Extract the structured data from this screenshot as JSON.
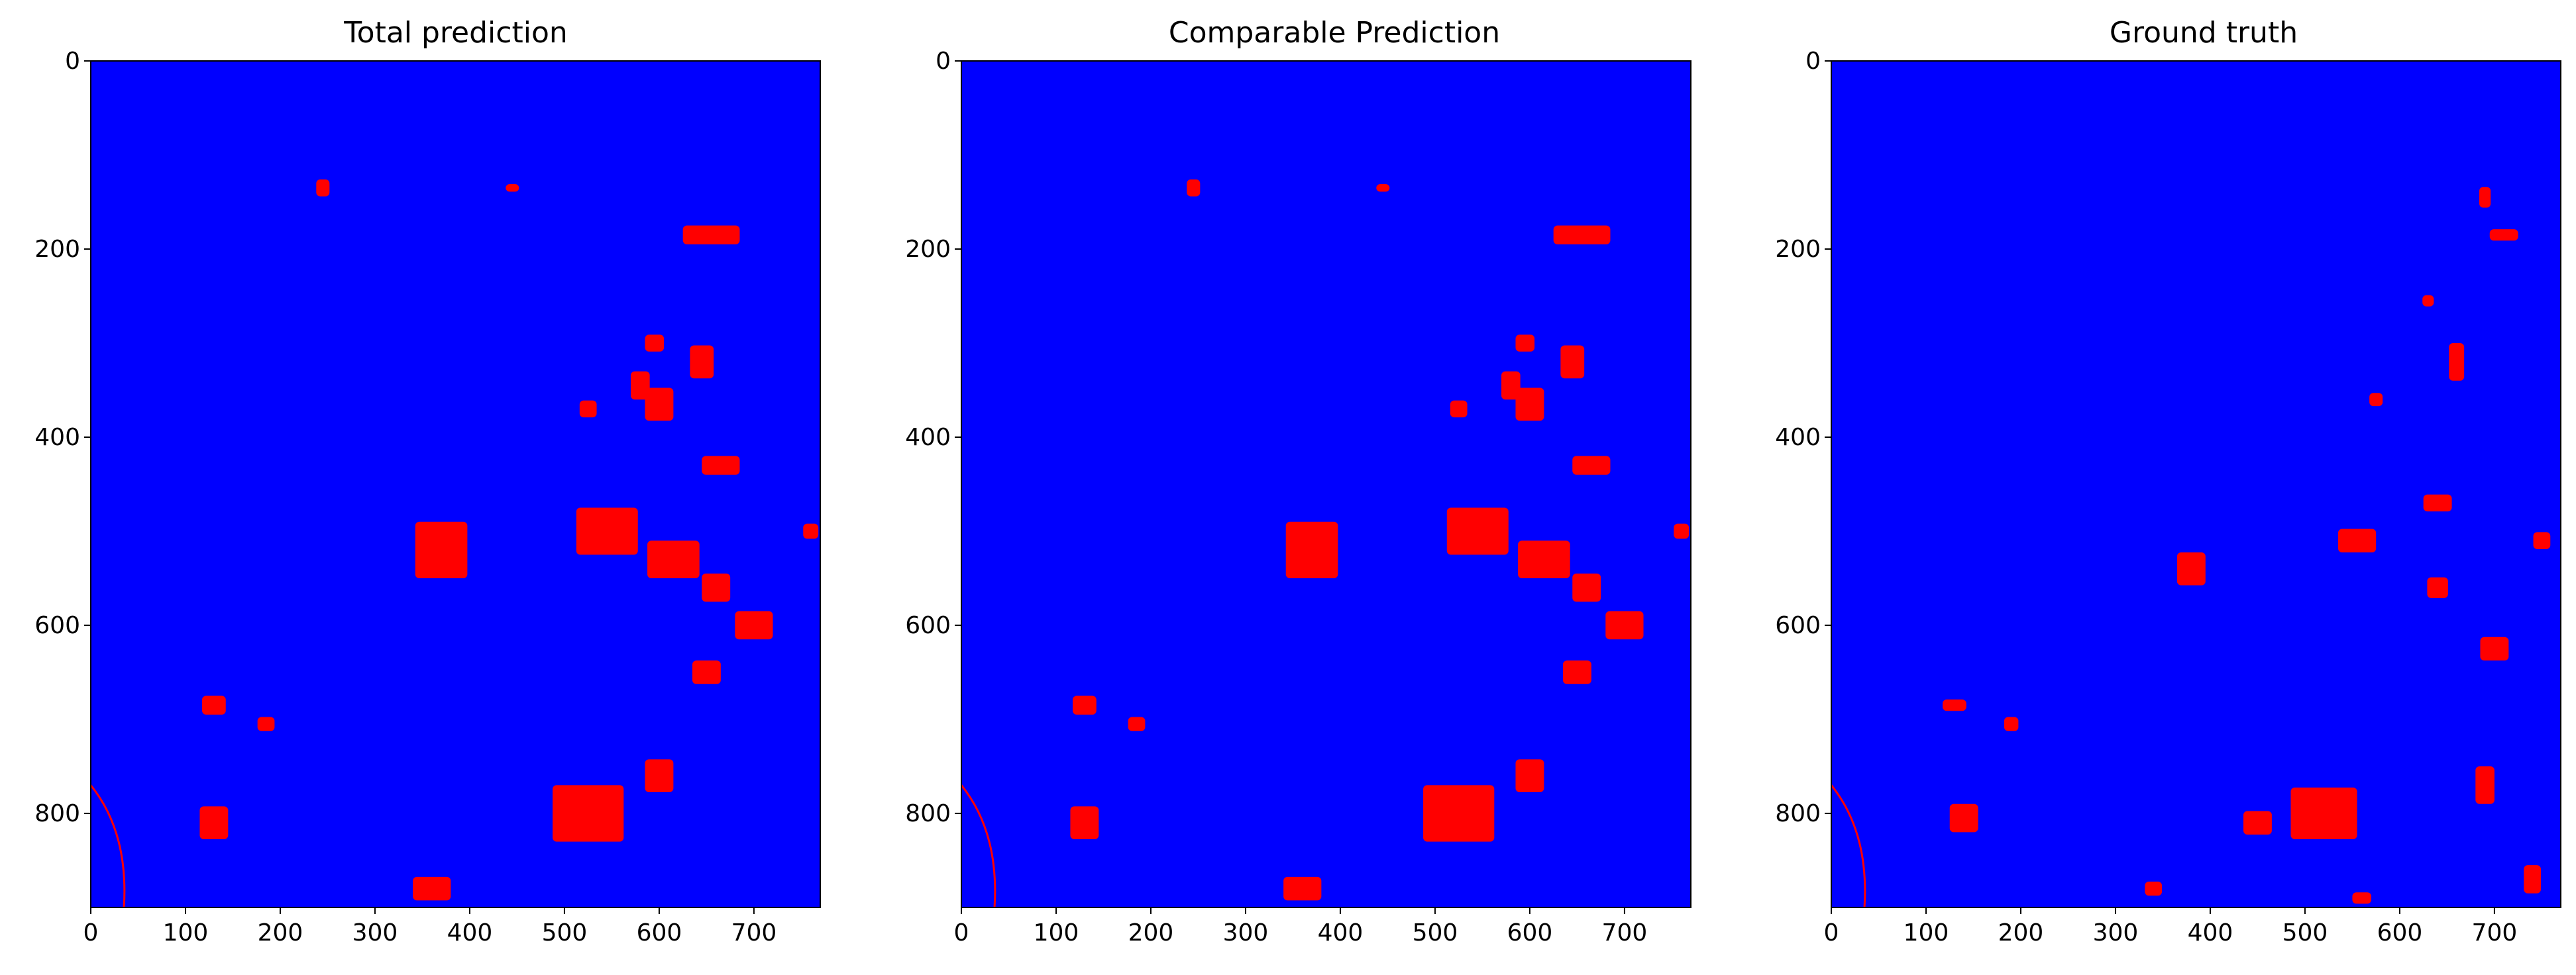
{
  "colors": {
    "background_class": "#0000ff",
    "foreground_class": "#ff0000",
    "axis": "#000000"
  },
  "chart_data": [
    {
      "type": "heatmap",
      "title": "Total prediction",
      "xlabel": "",
      "ylabel": "",
      "xlim": [
        0,
        770
      ],
      "ylim": [
        900,
        0
      ],
      "x_ticks": [
        0,
        100,
        200,
        300,
        400,
        500,
        600,
        700
      ],
      "y_ticks": [
        0,
        200,
        400,
        600,
        800
      ],
      "grid": false,
      "classes": [
        "background",
        "change"
      ],
      "blobs": [
        {
          "x": 245,
          "y": 135,
          "w": 14,
          "h": 18
        },
        {
          "x": 445,
          "y": 135,
          "w": 14,
          "h": 8
        },
        {
          "x": 655,
          "y": 185,
          "w": 60,
          "h": 20
        },
        {
          "x": 595,
          "y": 300,
          "w": 20,
          "h": 18
        },
        {
          "x": 645,
          "y": 320,
          "w": 25,
          "h": 35
        },
        {
          "x": 580,
          "y": 345,
          "w": 20,
          "h": 30
        },
        {
          "x": 525,
          "y": 370,
          "w": 18,
          "h": 18
        },
        {
          "x": 600,
          "y": 365,
          "w": 30,
          "h": 35
        },
        {
          "x": 545,
          "y": 500,
          "w": 65,
          "h": 50
        },
        {
          "x": 615,
          "y": 530,
          "w": 55,
          "h": 40
        },
        {
          "x": 370,
          "y": 520,
          "w": 55,
          "h": 60
        },
        {
          "x": 660,
          "y": 560,
          "w": 30,
          "h": 30
        },
        {
          "x": 760,
          "y": 500,
          "w": 16,
          "h": 16
        },
        {
          "x": 130,
          "y": 685,
          "w": 25,
          "h": 20
        },
        {
          "x": 185,
          "y": 705,
          "w": 18,
          "h": 15
        },
        {
          "x": 525,
          "y": 800,
          "w": 75,
          "h": 60
        },
        {
          "x": 600,
          "y": 760,
          "w": 30,
          "h": 35
        },
        {
          "x": 130,
          "y": 810,
          "w": 30,
          "h": 35
        },
        {
          "x": 665,
          "y": 430,
          "w": 40,
          "h": 20
        },
        {
          "x": 700,
          "y": 600,
          "w": 40,
          "h": 30
        },
        {
          "x": 360,
          "y": 880,
          "w": 40,
          "h": 25
        },
        {
          "x": 650,
          "y": 650,
          "w": 30,
          "h": 25
        }
      ]
    },
    {
      "type": "heatmap",
      "title": "Comparable Prediction",
      "xlabel": "",
      "ylabel": "",
      "xlim": [
        0,
        770
      ],
      "ylim": [
        900,
        0
      ],
      "x_ticks": [
        0,
        100,
        200,
        300,
        400,
        500,
        600,
        700
      ],
      "y_ticks": [
        0,
        200,
        400,
        600,
        800
      ],
      "grid": false,
      "classes": [
        "background",
        "change"
      ],
      "blobs": [
        {
          "x": 245,
          "y": 135,
          "w": 14,
          "h": 18
        },
        {
          "x": 445,
          "y": 135,
          "w": 14,
          "h": 8
        },
        {
          "x": 655,
          "y": 185,
          "w": 60,
          "h": 20
        },
        {
          "x": 595,
          "y": 300,
          "w": 20,
          "h": 18
        },
        {
          "x": 645,
          "y": 320,
          "w": 25,
          "h": 35
        },
        {
          "x": 580,
          "y": 345,
          "w": 20,
          "h": 30
        },
        {
          "x": 525,
          "y": 370,
          "w": 18,
          "h": 18
        },
        {
          "x": 600,
          "y": 365,
          "w": 30,
          "h": 35
        },
        {
          "x": 545,
          "y": 500,
          "w": 65,
          "h": 50
        },
        {
          "x": 615,
          "y": 530,
          "w": 55,
          "h": 40
        },
        {
          "x": 370,
          "y": 520,
          "w": 55,
          "h": 60
        },
        {
          "x": 660,
          "y": 560,
          "w": 30,
          "h": 30
        },
        {
          "x": 760,
          "y": 500,
          "w": 16,
          "h": 16
        },
        {
          "x": 130,
          "y": 685,
          "w": 25,
          "h": 20
        },
        {
          "x": 185,
          "y": 705,
          "w": 18,
          "h": 15
        },
        {
          "x": 525,
          "y": 800,
          "w": 75,
          "h": 60
        },
        {
          "x": 600,
          "y": 760,
          "w": 30,
          "h": 35
        },
        {
          "x": 130,
          "y": 810,
          "w": 30,
          "h": 35
        },
        {
          "x": 665,
          "y": 430,
          "w": 40,
          "h": 20
        },
        {
          "x": 700,
          "y": 600,
          "w": 40,
          "h": 30
        },
        {
          "x": 360,
          "y": 880,
          "w": 40,
          "h": 25
        },
        {
          "x": 650,
          "y": 650,
          "w": 30,
          "h": 25
        }
      ]
    },
    {
      "type": "heatmap",
      "title": "Ground truth",
      "xlabel": "",
      "ylabel": "",
      "xlim": [
        0,
        770
      ],
      "ylim": [
        900,
        0
      ],
      "x_ticks": [
        0,
        100,
        200,
        300,
        400,
        500,
        600,
        700
      ],
      "y_ticks": [
        0,
        200,
        400,
        600,
        800
      ],
      "grid": false,
      "classes": [
        "background",
        "change"
      ],
      "blobs": [
        {
          "x": 690,
          "y": 145,
          "w": 12,
          "h": 22
        },
        {
          "x": 710,
          "y": 185,
          "w": 30,
          "h": 12
        },
        {
          "x": 630,
          "y": 255,
          "w": 12,
          "h": 12
        },
        {
          "x": 660,
          "y": 320,
          "w": 16,
          "h": 40
        },
        {
          "x": 575,
          "y": 360,
          "w": 14,
          "h": 14
        },
        {
          "x": 380,
          "y": 540,
          "w": 30,
          "h": 35
        },
        {
          "x": 520,
          "y": 800,
          "w": 70,
          "h": 55
        },
        {
          "x": 450,
          "y": 810,
          "w": 30,
          "h": 25
        },
        {
          "x": 140,
          "y": 805,
          "w": 30,
          "h": 30
        },
        {
          "x": 190,
          "y": 705,
          "w": 15,
          "h": 15
        },
        {
          "x": 640,
          "y": 560,
          "w": 22,
          "h": 22
        },
        {
          "x": 700,
          "y": 625,
          "w": 30,
          "h": 25
        },
        {
          "x": 750,
          "y": 510,
          "w": 18,
          "h": 18
        },
        {
          "x": 555,
          "y": 510,
          "w": 40,
          "h": 25
        },
        {
          "x": 340,
          "y": 880,
          "w": 18,
          "h": 15
        },
        {
          "x": 560,
          "y": 890,
          "w": 20,
          "h": 12
        },
        {
          "x": 690,
          "y": 770,
          "w": 20,
          "h": 40
        },
        {
          "x": 130,
          "y": 685,
          "w": 25,
          "h": 12
        },
        {
          "x": 640,
          "y": 470,
          "w": 30,
          "h": 18
        },
        {
          "x": 740,
          "y": 870,
          "w": 18,
          "h": 30
        }
      ]
    }
  ]
}
